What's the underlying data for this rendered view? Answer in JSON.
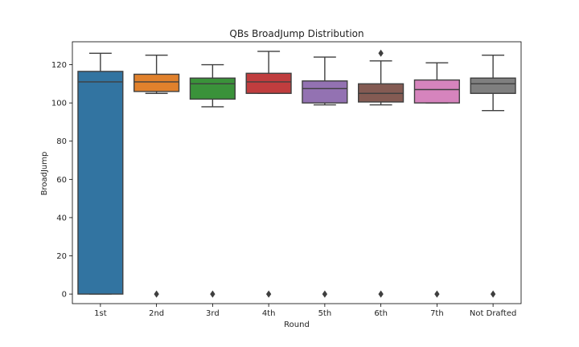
{
  "chart_data": {
    "type": "box",
    "title": "QBs BroadJump Distribution",
    "xlabel": "Round",
    "ylabel": "BroadJump",
    "categories": [
      "1st",
      "2nd",
      "3rd",
      "4th",
      "5th",
      "6th",
      "7th",
      "Not Drafted"
    ],
    "ylim": [
      -5,
      132
    ],
    "yticks": [
      0,
      20,
      40,
      60,
      80,
      100,
      120
    ],
    "grid": false,
    "legend": "none",
    "boxes": [
      {
        "category": "1st",
        "whisker_low": 0,
        "q1": 0,
        "median": 111,
        "q3": 116.5,
        "whisker_high": 126,
        "outliers": [],
        "color": "#3274a1"
      },
      {
        "category": "2nd",
        "whisker_low": 105,
        "q1": 106,
        "median": 111,
        "q3": 115,
        "whisker_high": 125,
        "outliers": [
          0
        ],
        "color": "#e1812c"
      },
      {
        "category": "3rd",
        "whisker_low": 98,
        "q1": 102,
        "median": 110,
        "q3": 113,
        "whisker_high": 120,
        "outliers": [
          0
        ],
        "color": "#3a923a"
      },
      {
        "category": "4th",
        "whisker_low": 105,
        "q1": 105,
        "median": 111,
        "q3": 115.5,
        "whisker_high": 127,
        "outliers": [
          0
        ],
        "color": "#c03d3e"
      },
      {
        "category": "5th",
        "whisker_low": 99,
        "q1": 100,
        "median": 107.5,
        "q3": 111.5,
        "whisker_high": 124,
        "outliers": [
          0
        ],
        "color": "#9372b2"
      },
      {
        "category": "6th",
        "whisker_low": 99,
        "q1": 100.5,
        "median": 105,
        "q3": 110,
        "whisker_high": 122,
        "outliers": [
          0,
          126
        ],
        "color": "#845b53"
      },
      {
        "category": "7th",
        "whisker_low": 100,
        "q1": 100,
        "median": 107,
        "q3": 112,
        "whisker_high": 121,
        "outliers": [
          0
        ],
        "color": "#d684bd"
      },
      {
        "category": "Not Drafted",
        "whisker_low": 96,
        "q1": 105,
        "median": 110,
        "q3": 113,
        "whisker_high": 125,
        "outliers": [
          0
        ],
        "color": "#7f7f7f"
      }
    ]
  }
}
